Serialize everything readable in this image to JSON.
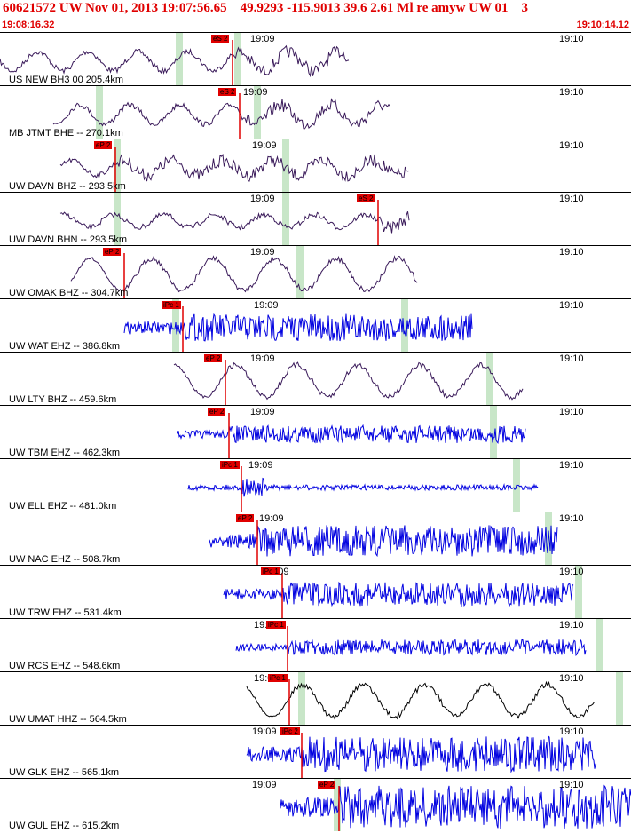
{
  "header": {
    "title": "60621572 UW Nov 01, 2013 19:07:56.65    49.9293 -115.9013 39.6 2.61 Ml re amyw UW 01    3",
    "start_time": "19:08:16.32",
    "end_time": "19:10:14.12"
  },
  "time_ticks": [
    "19:09",
    "19:10"
  ],
  "colors": {
    "title": "#e00000",
    "pick": "#e00000",
    "trace_bb": "#3a1a5a",
    "trace_sp": "#0000e0",
    "trace_other": "#000000",
    "window": "#c8e6c8"
  },
  "traces": [
    {
      "label": "US NEW BH3 00 205.4km",
      "pick": "eS 2",
      "color_key": "trace_bb"
    },
    {
      "label": "MB JTMT BHE -- 270.1km",
      "pick": "eS 2",
      "color_key": "trace_bb"
    },
    {
      "label": "UW DAVN BHZ -- 293.5km",
      "pick": "eP 2",
      "color_key": "trace_bb"
    },
    {
      "label": "UW DAVN BHN -- 293.5km",
      "pick": "eS 2",
      "color_key": "trace_bb"
    },
    {
      "label": "UW OMAK BHZ -- 304.7km",
      "pick": "eP 2",
      "color_key": "trace_bb"
    },
    {
      "label": "UW WAT EHZ -- 386.8km",
      "pick": "iPc 1",
      "color_key": "trace_sp"
    },
    {
      "label": "UW LTY BHZ -- 459.6km",
      "pick": "eP 2",
      "color_key": "trace_bb"
    },
    {
      "label": "UW TBM EHZ -- 462.3km",
      "pick": "eP 2",
      "color_key": "trace_sp"
    },
    {
      "label": "UW ELL EHZ -- 481.0km",
      "pick": "iPc 1",
      "color_key": "trace_sp"
    },
    {
      "label": "UW NAC EHZ -- 508.7km",
      "pick": "eP 2",
      "color_key": "trace_sp"
    },
    {
      "label": "UW TRW EHZ -- 531.4km",
      "pick": "iPc 1",
      "color_key": "trace_sp"
    },
    {
      "label": "UW RCS EHZ -- 548.6km",
      "pick": "iPc 1",
      "color_key": "trace_sp"
    },
    {
      "label": "UW UMAT HHZ -- 564.5km",
      "pick": "iPc 1",
      "color_key": "trace_other"
    },
    {
      "label": "UW GLK EHZ -- 565.1km",
      "pick": "iPc 2",
      "color_key": "trace_sp"
    },
    {
      "label": "UW GUL EHZ -- 615.2km",
      "pick": "eP 2",
      "color_key": "trace_sp"
    }
  ]
}
